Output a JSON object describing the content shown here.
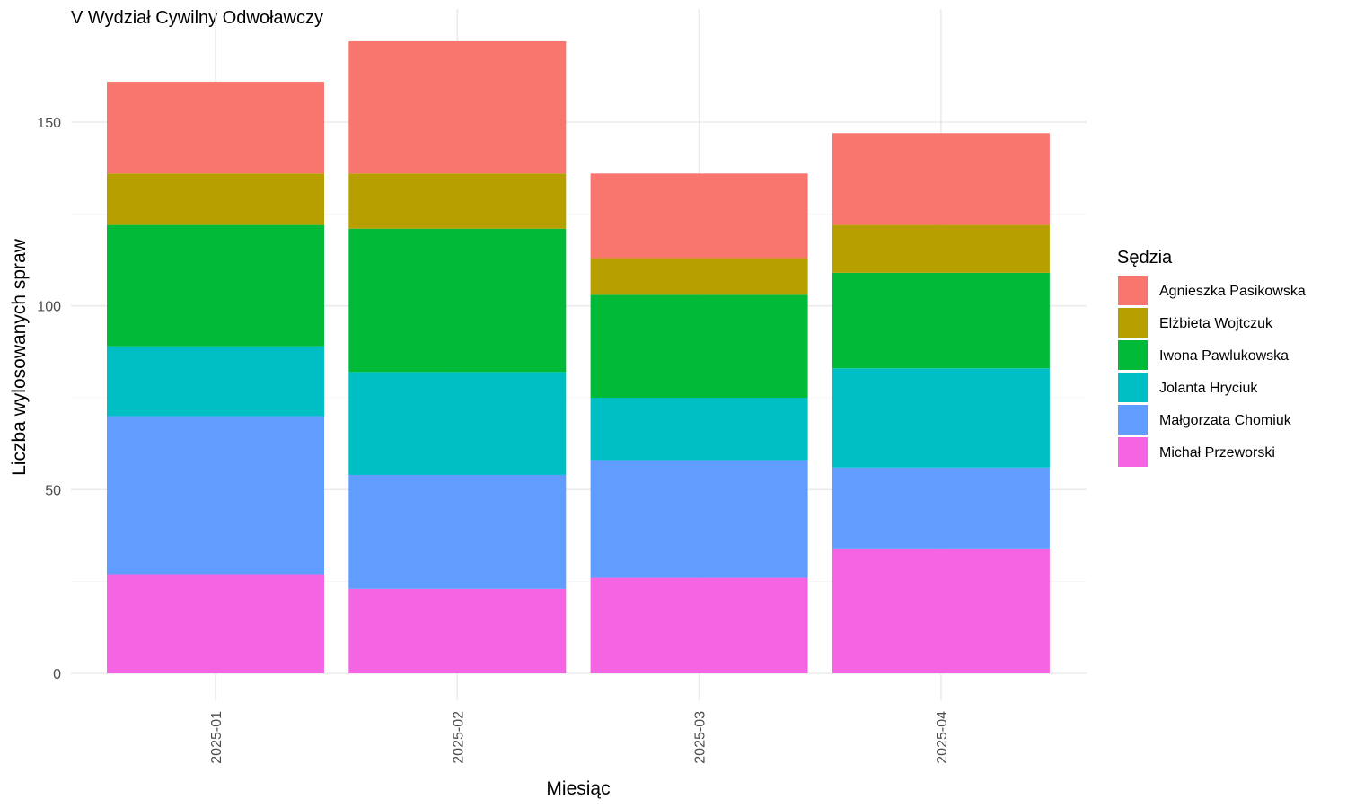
{
  "chart_data": {
    "type": "bar",
    "stacked": true,
    "title": "V Wydział Cywilny Odwoławczy",
    "xlabel": "Miesiąc",
    "ylabel": "Liczba wylosowanych spraw",
    "categories": [
      "2025-01",
      "2025-02",
      "2025-03",
      "2025-04"
    ],
    "ylim": [
      0,
      175
    ],
    "yticks": [
      0,
      50,
      100,
      150
    ],
    "grid": true,
    "legend": {
      "title": "Sędzia",
      "position": "right"
    },
    "series": [
      {
        "name": "Michał Przeworski",
        "color": "#F564E3",
        "values": [
          27,
          23,
          26,
          34
        ]
      },
      {
        "name": "Małgorzata Chomiuk",
        "color": "#619CFF",
        "values": [
          43,
          31,
          32,
          22
        ]
      },
      {
        "name": "Jolanta Hryciuk",
        "color": "#00BFC4",
        "values": [
          19,
          28,
          17,
          27
        ]
      },
      {
        "name": "Iwona Pawlukowska",
        "color": "#00BA38",
        "values": [
          33,
          39,
          28,
          26
        ]
      },
      {
        "name": "Elżbieta Wojtczuk",
        "color": "#B79F00",
        "values": [
          14,
          15,
          10,
          13
        ]
      },
      {
        "name": "Agnieszka Pasikowska",
        "color": "#F8766D",
        "values": [
          25,
          36,
          23,
          25
        ]
      }
    ],
    "legend_order": [
      "Agnieszka Pasikowska",
      "Elżbieta Wojtczuk",
      "Iwona Pawlukowska",
      "Jolanta Hryciuk",
      "Małgorzata Chomiuk",
      "Michał Przeworski"
    ]
  }
}
